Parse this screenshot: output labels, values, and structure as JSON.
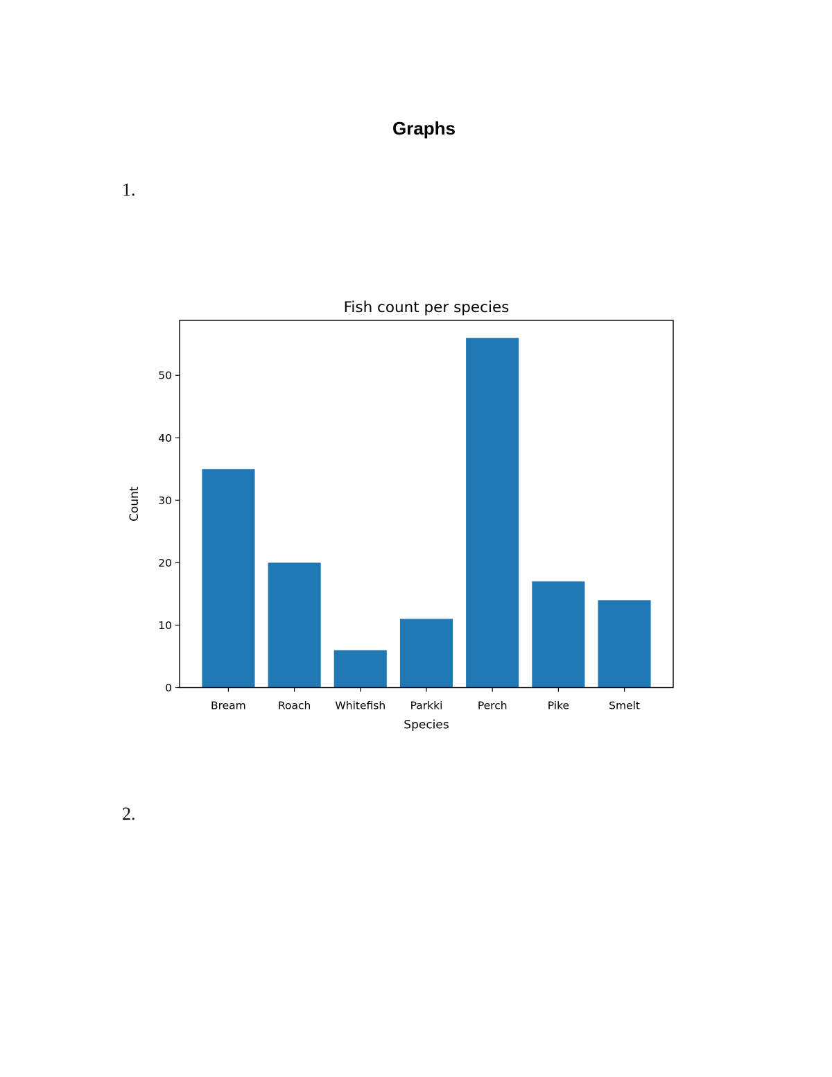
{
  "document": {
    "title": "Graphs",
    "list_markers": [
      "1.",
      "2."
    ]
  },
  "chart_data": {
    "type": "bar",
    "title": "Fish count per species",
    "xlabel": "Species",
    "ylabel": "Count",
    "categories": [
      "Bream",
      "Roach",
      "Whitefish",
      "Parkki",
      "Perch",
      "Pike",
      "Smelt"
    ],
    "values": [
      35,
      20,
      6,
      11,
      56,
      17,
      14
    ],
    "yticks": [
      0,
      10,
      20,
      30,
      40,
      50
    ],
    "ylim": [
      0,
      58.8
    ],
    "grid": false,
    "legend": "none",
    "colors": {
      "bar": "#1f77b4",
      "axis": "#000000",
      "text": "#000000"
    }
  }
}
